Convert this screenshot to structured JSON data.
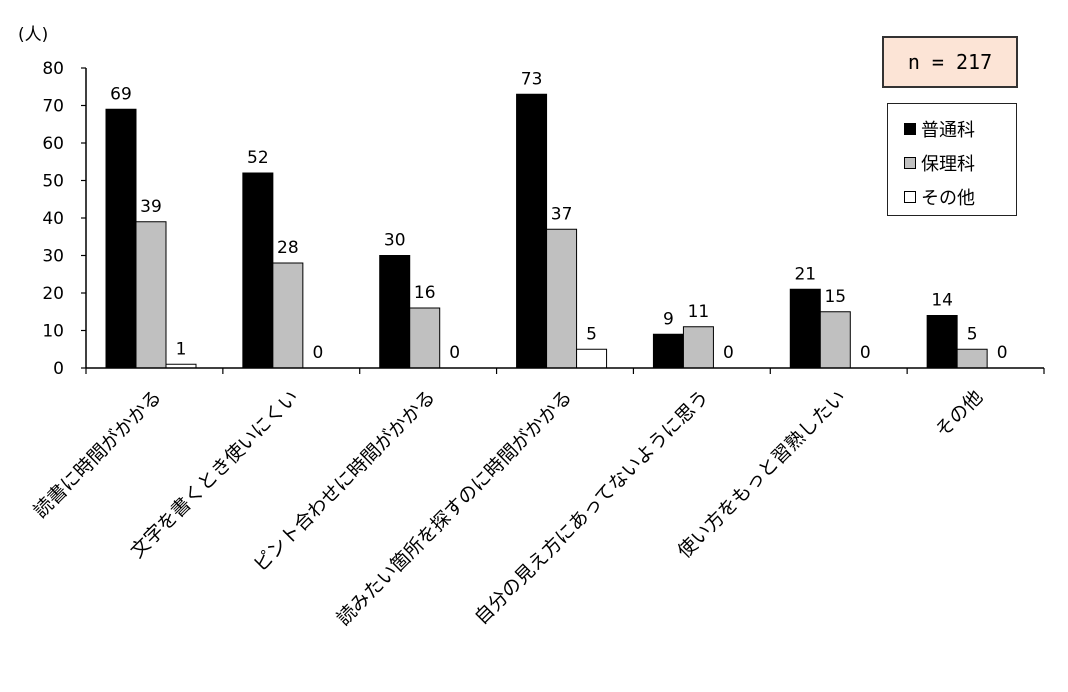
{
  "unit_label": "(人)",
  "n_label": "n = 217",
  "colors": {
    "普通科": "#000000",
    "保理科": "#c0c0c0",
    "その他": "#ffffff"
  },
  "chart_data": {
    "type": "bar",
    "ylim": [
      0,
      80
    ],
    "yticks": [
      0,
      10,
      20,
      30,
      40,
      50,
      60,
      70,
      80
    ],
    "categories": [
      "読書に時間がかかる",
      "文字を書くとき使いにくい",
      "ピント合わせに時間がかかる",
      "読みたい箇所を探すのに時間がかかる",
      "自分の見え方にあってないように思う",
      "使い方をもっと習熟したい",
      "その他"
    ],
    "series": [
      {
        "name": "普通科",
        "values": [
          69,
          52,
          30,
          73,
          9,
          21,
          14
        ]
      },
      {
        "name": "保理科",
        "values": [
          39,
          28,
          16,
          37,
          11,
          15,
          5
        ]
      },
      {
        "name": "その他",
        "values": [
          1,
          0,
          0,
          5,
          0,
          0,
          0
        ]
      }
    ],
    "legend_position": "top-right",
    "grid": false
  }
}
